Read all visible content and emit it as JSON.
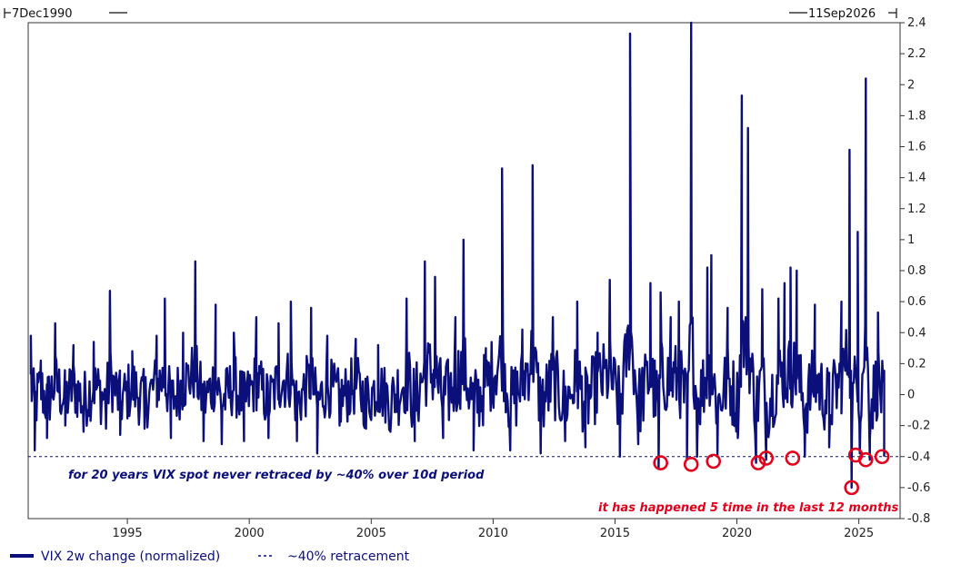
{
  "chart_data": {
    "type": "line",
    "date_range": {
      "start_label": "7Dec1990",
      "end_label": "11Sep2026"
    },
    "x_ticks": [
      "1995",
      "2000",
      "2005",
      "2010",
      "2015",
      "2020",
      "2025"
    ],
    "y_ticks": [
      "-0.8",
      "-0.6",
      "-0.4",
      "-0.2",
      "0",
      "0.2",
      "0.4",
      "0.6",
      "0.8",
      "1",
      "1.2",
      "1.4",
      "1.6",
      "1.8",
      "2",
      "2.2",
      "2.4"
    ],
    "xlim": [
      "1990-12-07",
      "2026-09-11"
    ],
    "ylim": [
      -0.8,
      2.4
    ],
    "y_axis_side": "right",
    "grid": false,
    "legend_position": "bottom-left",
    "series": [
      {
        "name": "VIX 2w change (normalized)",
        "style": "solid",
        "color": "#0a0f7a",
        "points": [
          {
            "x": "1991-01",
            "y": 0.38
          },
          {
            "x": "1991-03",
            "y": -0.36
          },
          {
            "x": "1991-06",
            "y": 0.22
          },
          {
            "x": "1991-09",
            "y": -0.28
          },
          {
            "x": "1992-01",
            "y": 0.46
          },
          {
            "x": "1992-06",
            "y": -0.2
          },
          {
            "x": "1992-10",
            "y": 0.32
          },
          {
            "x": "1993-03",
            "y": -0.24
          },
          {
            "x": "1993-08",
            "y": 0.34
          },
          {
            "x": "1994-02",
            "y": -0.22
          },
          {
            "x": "1994-04",
            "y": 0.67
          },
          {
            "x": "1994-09",
            "y": -0.26
          },
          {
            "x": "1995-03",
            "y": 0.28
          },
          {
            "x": "1995-09",
            "y": -0.22
          },
          {
            "x": "1996-03",
            "y": 0.38
          },
          {
            "x": "1996-07",
            "y": 0.62
          },
          {
            "x": "1996-10",
            "y": -0.28
          },
          {
            "x": "1997-04",
            "y": 0.4
          },
          {
            "x": "1997-10",
            "y": 0.86
          },
          {
            "x": "1998-02",
            "y": -0.3
          },
          {
            "x": "1998-08",
            "y": 0.58
          },
          {
            "x": "1998-11",
            "y": -0.32
          },
          {
            "x": "1999-05",
            "y": 0.4
          },
          {
            "x": "1999-10",
            "y": -0.3
          },
          {
            "x": "2000-04",
            "y": 0.5
          },
          {
            "x": "2000-10",
            "y": -0.28
          },
          {
            "x": "2001-03",
            "y": 0.46
          },
          {
            "x": "2001-09",
            "y": 0.6
          },
          {
            "x": "2001-12",
            "y": -0.3
          },
          {
            "x": "2002-07",
            "y": 0.56
          },
          {
            "x": "2002-10",
            "y": -0.38
          },
          {
            "x": "2003-03",
            "y": 0.38
          },
          {
            "x": "2003-09",
            "y": -0.2
          },
          {
            "x": "2004-05",
            "y": 0.36
          },
          {
            "x": "2004-10",
            "y": -0.22
          },
          {
            "x": "2005-04",
            "y": 0.32
          },
          {
            "x": "2005-10",
            "y": -0.24
          },
          {
            "x": "2006-06",
            "y": 0.62
          },
          {
            "x": "2006-10",
            "y": -0.3
          },
          {
            "x": "2007-03",
            "y": 0.86
          },
          {
            "x": "2007-08",
            "y": 0.76
          },
          {
            "x": "2007-12",
            "y": -0.28
          },
          {
            "x": "2008-06",
            "y": 0.5
          },
          {
            "x": "2008-10",
            "y": 1.0
          },
          {
            "x": "2009-03",
            "y": -0.36
          },
          {
            "x": "2009-09",
            "y": 0.3
          },
          {
            "x": "2010-05",
            "y": 1.46
          },
          {
            "x": "2010-09",
            "y": -0.36
          },
          {
            "x": "2011-03",
            "y": 0.42
          },
          {
            "x": "2011-08",
            "y": 1.48
          },
          {
            "x": "2011-12",
            "y": -0.38
          },
          {
            "x": "2012-06",
            "y": 0.5
          },
          {
            "x": "2012-12",
            "y": -0.3
          },
          {
            "x": "2013-06",
            "y": 0.6
          },
          {
            "x": "2013-10",
            "y": -0.34
          },
          {
            "x": "2014-04",
            "y": 0.4
          },
          {
            "x": "2014-10",
            "y": 0.74
          },
          {
            "x": "2015-03",
            "y": -0.4
          },
          {
            "x": "2015-08",
            "y": 2.33
          },
          {
            "x": "2015-12",
            "y": -0.32
          },
          {
            "x": "2016-06",
            "y": 0.72
          },
          {
            "x": "2016-10",
            "y": -0.48
          },
          {
            "x": "2016-11",
            "y": 0.66
          },
          {
            "x": "2017-04",
            "y": 0.5
          },
          {
            "x": "2017-08",
            "y": 0.6
          },
          {
            "x": "2017-12",
            "y": -0.42
          },
          {
            "x": "2018-02",
            "y": 2.4
          },
          {
            "x": "2018-05",
            "y": -0.4
          },
          {
            "x": "2018-10",
            "y": 0.82
          },
          {
            "x": "2018-12",
            "y": 0.9
          },
          {
            "x": "2019-03",
            "y": -0.4
          },
          {
            "x": "2019-08",
            "y": 0.56
          },
          {
            "x": "2020-01",
            "y": -0.28
          },
          {
            "x": "2020-03",
            "y": 1.93
          },
          {
            "x": "2020-06",
            "y": 1.72
          },
          {
            "x": "2020-10",
            "y": -0.44
          },
          {
            "x": "2021-01",
            "y": 0.68
          },
          {
            "x": "2021-03",
            "y": -0.42
          },
          {
            "x": "2021-09",
            "y": 0.62
          },
          {
            "x": "2021-12",
            "y": 0.72
          },
          {
            "x": "2022-03",
            "y": 0.82
          },
          {
            "x": "2022-06",
            "y": 0.8
          },
          {
            "x": "2022-10",
            "y": -0.4
          },
          {
            "x": "2023-03",
            "y": 0.58
          },
          {
            "x": "2023-10",
            "y": -0.34
          },
          {
            "x": "2024-04",
            "y": 0.6
          },
          {
            "x": "2024-08",
            "y": 1.58
          },
          {
            "x": "2024-09",
            "y": -0.6
          },
          {
            "x": "2024-12",
            "y": 1.05
          },
          {
            "x": "2025-01",
            "y": -0.38
          },
          {
            "x": "2025-04",
            "y": 2.04
          },
          {
            "x": "2025-06",
            "y": -0.42
          },
          {
            "x": "2025-10",
            "y": 0.53
          },
          {
            "x": "2026-01",
            "y": -0.4
          }
        ]
      },
      {
        "name": "~40% retracement",
        "style": "dashed",
        "color": "#0a0f7a",
        "y": -0.4
      }
    ],
    "annotations": [
      {
        "text": "for 20 years VIX spot never retraced by ~40% over 10d period",
        "color": "#0a0f7a",
        "x": "1991-06",
        "y": -0.52
      },
      {
        "text": "it has happened 5 time in the last 12 months",
        "color": "#e3001b",
        "x": "2026-09",
        "y": -0.73
      }
    ],
    "highlight_circles": {
      "color": "#e3001b",
      "points": [
        {
          "x": "2016-11",
          "y": -0.44
        },
        {
          "x": "2018-02",
          "y": -0.45
        },
        {
          "x": "2019-01",
          "y": -0.43
        },
        {
          "x": "2020-11",
          "y": -0.44
        },
        {
          "x": "2021-03",
          "y": -0.41
        },
        {
          "x": "2022-04",
          "y": -0.41
        },
        {
          "x": "2024-09",
          "y": -0.6
        },
        {
          "x": "2024-11",
          "y": -0.39
        },
        {
          "x": "2025-04",
          "y": -0.42
        },
        {
          "x": "2025-12",
          "y": -0.4
        }
      ]
    }
  }
}
